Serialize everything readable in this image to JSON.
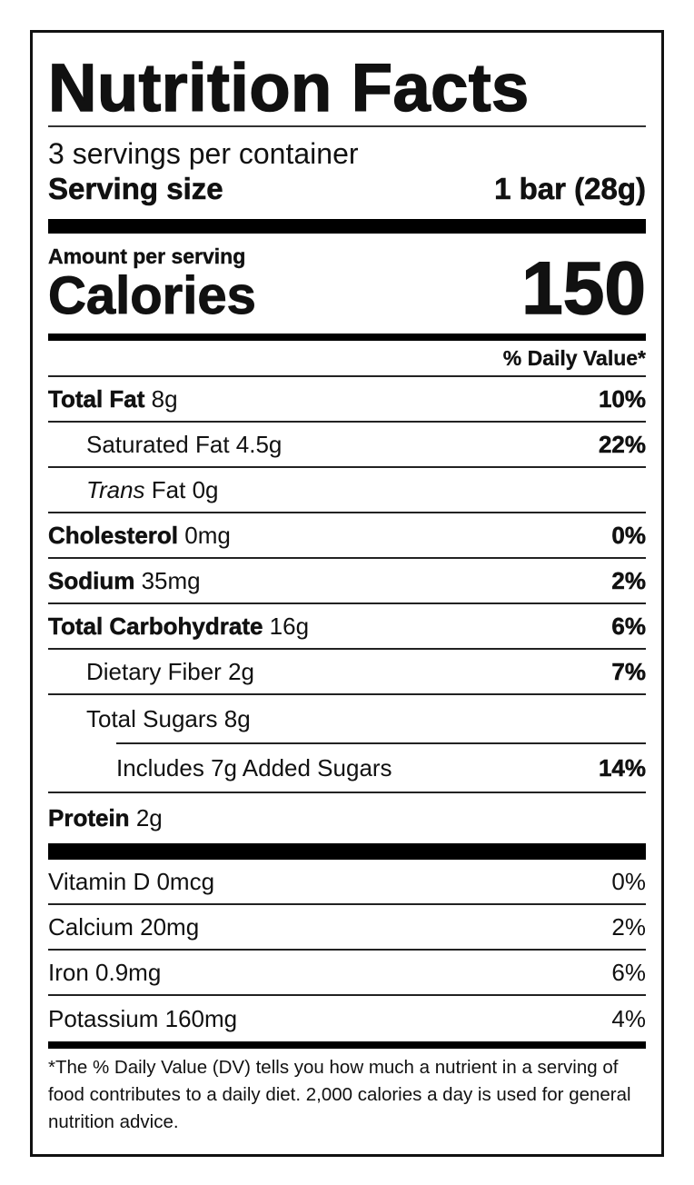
{
  "title": "Nutrition Facts",
  "servings_per_container": "3 servings per container",
  "serving_size_label": "Serving size",
  "serving_size_value": "1 bar (28g)",
  "amount_per_serving": "Amount per serving",
  "calories_label": "Calories",
  "calories_value": "150",
  "daily_value_header": "% Daily Value*",
  "nutrients": [
    {
      "name": "Total Fat",
      "amount": "8g",
      "dv": "10%"
    },
    {
      "name": "Saturated Fat",
      "amount": "4.5g",
      "dv": "22%"
    },
    {
      "name_italic": "Trans",
      "name": "Fat",
      "amount": "0g",
      "dv": ""
    },
    {
      "name": "Cholesterol",
      "amount": "0mg",
      "dv": "0%"
    },
    {
      "name": "Sodium",
      "amount": "35mg",
      "dv": "2%"
    },
    {
      "name": "Total Carbohydrate",
      "amount": "16g",
      "dv": "6%"
    },
    {
      "name": "Dietary Fiber",
      "amount": "2g",
      "dv": "7%"
    },
    {
      "name": "Total Sugars",
      "amount": "8g",
      "dv": ""
    },
    {
      "name": "Includes 7g Added Sugars",
      "dv": "14%"
    },
    {
      "name": "Protein",
      "amount": "2g"
    }
  ],
  "vitamins": [
    {
      "name": "Vitamin D 0mcg",
      "dv": "0%"
    },
    {
      "name": "Calcium 20mg",
      "dv": "2%"
    },
    {
      "name": "Iron 0.9mg",
      "dv": "6%"
    },
    {
      "name": "Potassium 160mg",
      "dv": "4%"
    }
  ],
  "footnote": "*The % Daily Value (DV) tells you how much a nutrient in a serving of food contributes to a daily diet. 2,000 calories a day is used for general nutrition advice."
}
